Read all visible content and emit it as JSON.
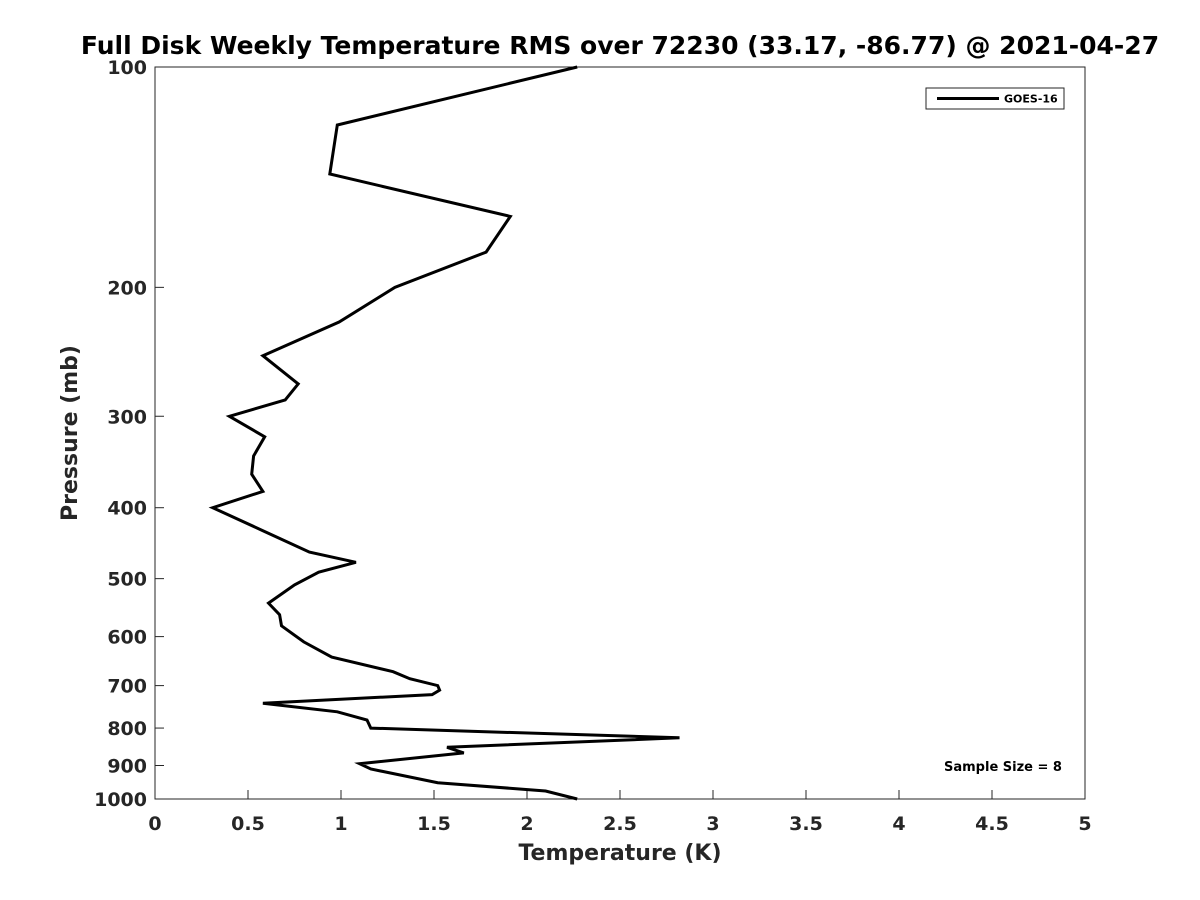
{
  "chart_data": {
    "type": "line",
    "title": "Full Disk Weekly Temperature RMS over 72230 (33.17, -86.77) @ 2021-04-27",
    "xlabel": "Temperature (K)",
    "ylabel": "Pressure (mb)",
    "xlim": [
      0,
      5
    ],
    "ylim": [
      100,
      1000
    ],
    "y_scale": "log",
    "y_reversed": true,
    "x_ticks": [
      "0",
      "0.5",
      "1",
      "1.5",
      "2",
      "2.5",
      "3",
      "3.5",
      "4",
      "4.5",
      "5"
    ],
    "y_ticks": [
      "100",
      "200",
      "300",
      "400",
      "500",
      "600",
      "700",
      "800",
      "900",
      "1000"
    ],
    "grid": false,
    "legend_position": "top-right",
    "annotation": "Sample Size = 8",
    "series": [
      {
        "name": "GOES-16",
        "color": "#000000",
        "points": [
          [
            2.27,
            100
          ],
          [
            0.98,
            120
          ],
          [
            0.94,
            140
          ],
          [
            1.91,
            160
          ],
          [
            1.78,
            179
          ],
          [
            1.29,
            200
          ],
          [
            0.99,
            223
          ],
          [
            0.58,
            248
          ],
          [
            0.77,
            271
          ],
          [
            0.7,
            285
          ],
          [
            0.4,
            300
          ],
          [
            0.59,
            320
          ],
          [
            0.53,
            340
          ],
          [
            0.52,
            360
          ],
          [
            0.58,
            380
          ],
          [
            0.31,
            400
          ],
          [
            0.58,
            430
          ],
          [
            0.83,
            460
          ],
          [
            1.08,
            475
          ],
          [
            0.88,
            490
          ],
          [
            0.75,
            510
          ],
          [
            0.61,
            540
          ],
          [
            0.67,
            560
          ],
          [
            0.68,
            580
          ],
          [
            0.8,
            610
          ],
          [
            0.95,
            640
          ],
          [
            1.28,
            670
          ],
          [
            1.37,
            685
          ],
          [
            1.52,
            700
          ],
          [
            1.53,
            710
          ],
          [
            1.49,
            720
          ],
          [
            0.58,
            740
          ],
          [
            0.98,
            760
          ],
          [
            1.14,
            780
          ],
          [
            1.16,
            800
          ],
          [
            2.82,
            825
          ],
          [
            1.57,
            850
          ],
          [
            1.66,
            865
          ],
          [
            1.1,
            895
          ],
          [
            1.16,
            910
          ],
          [
            1.52,
            950
          ],
          [
            2.1,
            975
          ],
          [
            2.27,
            1000
          ]
        ]
      }
    ]
  }
}
